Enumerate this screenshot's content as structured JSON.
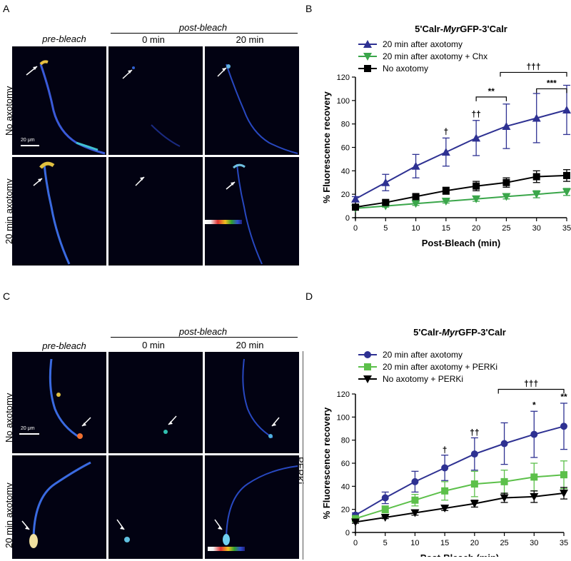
{
  "panel_A": {
    "label": "A",
    "col_pre": "pre-bleach",
    "col_post": "post-bleach",
    "col_0": "0 min",
    "col_20": "20 min",
    "row_1": "No axotomy",
    "row_2": "20 min axotomy",
    "scale": "20 μm"
  },
  "panel_C": {
    "label": "C",
    "col_pre": "pre-bleach",
    "col_post": "post-bleach",
    "col_0": "0 min",
    "col_20": "20 min",
    "row_1": "No axotomy",
    "row_2": "20 min axotomy",
    "scale": "20 μm",
    "side_label": "PERKi"
  },
  "chart_data": [
    {
      "label": "B",
      "type": "line",
      "title_pre": "5'Calr-",
      "title_italic": "Myr",
      "title_post": "GFP-3'Calr",
      "xlabel": "Post-Bleach (min)",
      "ylabel": "% Fluorescence recovery",
      "x": [
        0,
        5,
        10,
        15,
        20,
        25,
        30,
        35
      ],
      "xlim": [
        0,
        35
      ],
      "ylim": [
        0,
        120
      ],
      "xticks": [
        "0",
        "5",
        "10",
        "15",
        "20",
        "25",
        "30",
        "35"
      ],
      "yticks": [
        "0",
        "20",
        "40",
        "60",
        "80",
        "100",
        "120"
      ],
      "series": [
        {
          "name": "20 min after axotomy",
          "color": "#2e3192",
          "marker": "triangle-up",
          "values": [
            16,
            30,
            44,
            56,
            68,
            78,
            85,
            92
          ],
          "err": [
            2,
            7,
            10,
            12,
            15,
            19,
            21,
            21
          ]
        },
        {
          "name": "20 min after axotomy + Chx",
          "color": "#3aa64a",
          "marker": "triangle-down",
          "values": [
            8,
            10,
            12,
            14,
            16,
            18,
            20,
            22
          ],
          "err": [
            1,
            1,
            1.5,
            1.5,
            2,
            2,
            3,
            3
          ]
        },
        {
          "name": "No axotomy",
          "color": "#000000",
          "marker": "square",
          "values": [
            9,
            13,
            18,
            23,
            27,
            30,
            35,
            36
          ],
          "err": [
            1.5,
            2,
            2,
            3,
            4,
            4,
            5,
            5
          ]
        }
      ],
      "annotations": [
        {
          "x": 15,
          "y": 71,
          "text": "†"
        },
        {
          "x": 20,
          "y": 86,
          "text": "††"
        }
      ],
      "brackets": [
        {
          "x1": 20,
          "x2": 25,
          "y": 103,
          "text": "**"
        },
        {
          "x1": 30,
          "x2": 35,
          "y": 110,
          "text": "***"
        },
        {
          "x1": 24,
          "x2": 35,
          "y": 124,
          "text": "†††"
        }
      ]
    },
    {
      "label": "D",
      "type": "line",
      "title_pre": "5'Calr-",
      "title_italic": "Myr",
      "title_post": "GFP-3'Calr",
      "xlabel": "Post-Bleach (min)",
      "ylabel": "% Fluorescence recovery",
      "x": [
        0,
        5,
        10,
        15,
        20,
        25,
        30,
        35
      ],
      "xlim": [
        0,
        35
      ],
      "ylim": [
        0,
        120
      ],
      "xticks": [
        "0",
        "5",
        "10",
        "15",
        "20",
        "25",
        "30",
        "35"
      ],
      "yticks": [
        "0",
        "20",
        "40",
        "60",
        "80",
        "100",
        "120"
      ],
      "series": [
        {
          "name": "20 min after axotomy",
          "color": "#2e3192",
          "marker": "circle",
          "values": [
            15,
            30,
            44,
            56,
            68,
            77,
            85,
            92
          ],
          "err": [
            2,
            5,
            9,
            11,
            14,
            18,
            20,
            20
          ]
        },
        {
          "name": "20 min after axotomy + PERKi",
          "color": "#5cc04a",
          "marker": "square",
          "values": [
            12,
            20,
            28,
            36,
            42,
            44,
            48,
            50
          ],
          "err": [
            2,
            3,
            5,
            8,
            11,
            10,
            12,
            12
          ]
        },
        {
          "name": "No axotomy + PERKi",
          "color": "#000000",
          "marker": "triangle-down",
          "values": [
            9,
            13,
            17,
            21,
            25,
            30,
            31,
            34
          ],
          "err": [
            1,
            1,
            2,
            2,
            3,
            4,
            5,
            5
          ]
        }
      ],
      "annotations": [
        {
          "x": 15,
          "y": 69,
          "text": "†"
        },
        {
          "x": 20,
          "y": 84,
          "text": "††"
        },
        {
          "x": 30,
          "y": 108,
          "text": "*"
        },
        {
          "x": 35,
          "y": 115,
          "text": "**"
        }
      ],
      "brackets": [
        {
          "x1": 24,
          "x2": 35,
          "y": 124,
          "text": "†††"
        }
      ]
    }
  ]
}
